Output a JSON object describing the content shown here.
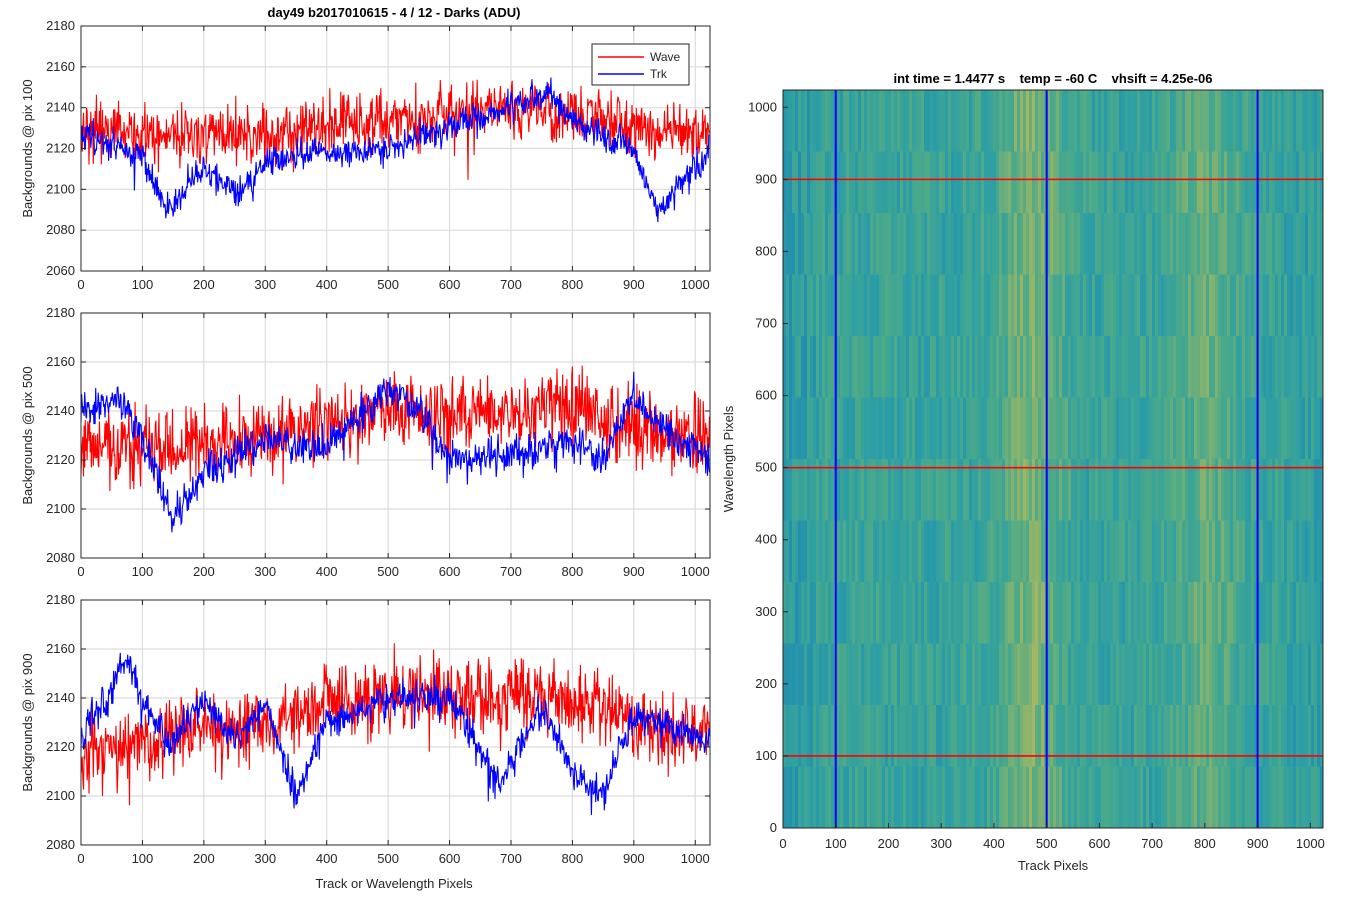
{
  "figure": {
    "title": "day49 b2017010615 - 4 / 12 - Darks (ADU)",
    "xlabel_left": "Track or Wavelength Pixels"
  },
  "chart_data": [
    {
      "type": "line",
      "ylabel": "Backgrounds @ pix 100",
      "xlim": [
        0,
        1024
      ],
      "ylim": [
        2060,
        2180
      ],
      "xticks": [
        0,
        100,
        200,
        300,
        400,
        500,
        600,
        700,
        800,
        900,
        1000
      ],
      "yticks": [
        2060,
        2080,
        2100,
        2120,
        2140,
        2160,
        2180
      ],
      "grid": true,
      "legend": "top-right",
      "series": [
        {
          "name": "Wave",
          "color": "#ff0000",
          "mean": 2128,
          "noise": 10,
          "seed": 11,
          "trend_x": [
            0,
            100,
            200,
            300,
            400,
            500,
            600,
            700,
            800,
            900,
            1024
          ],
          "trend_y": [
            2128,
            2127,
            2126,
            2125,
            2131,
            2134,
            2136,
            2140,
            2138,
            2130,
            2126
          ]
        },
        {
          "name": "Trk",
          "color": "#0000ff",
          "mean": 2118,
          "noise": 5,
          "seed": 23,
          "trend_x": [
            0,
            50,
            100,
            140,
            200,
            260,
            300,
            400,
            500,
            600,
            700,
            760,
            800,
            900,
            940,
            1024
          ],
          "trend_y": [
            2128,
            2122,
            2115,
            2090,
            2110,
            2098,
            2115,
            2118,
            2120,
            2132,
            2140,
            2148,
            2135,
            2118,
            2090,
            2120
          ]
        }
      ]
    },
    {
      "type": "line",
      "ylabel": "Backgrounds @ pix 500",
      "xlim": [
        0,
        1024
      ],
      "ylim": [
        2080,
        2180
      ],
      "xticks": [
        0,
        100,
        200,
        300,
        400,
        500,
        600,
        700,
        800,
        900,
        1000
      ],
      "yticks": [
        2080,
        2100,
        2120,
        2140,
        2160,
        2180
      ],
      "grid": true,
      "series": [
        {
          "name": "Wave",
          "color": "#ff0000",
          "mean": 2128,
          "noise": 11,
          "seed": 37,
          "trend_x": [
            0,
            100,
            200,
            300,
            400,
            500,
            600,
            700,
            800,
            900,
            1024
          ],
          "trend_y": [
            2126,
            2124,
            2126,
            2130,
            2135,
            2140,
            2138,
            2140,
            2142,
            2134,
            2128
          ]
        },
        {
          "name": "Trk",
          "color": "#0000ff",
          "mean": 2125,
          "noise": 5,
          "seed": 41,
          "trend_x": [
            0,
            60,
            100,
            150,
            200,
            300,
            400,
            500,
            550,
            600,
            700,
            800,
            850,
            900,
            1024
          ],
          "trend_y": [
            2140,
            2145,
            2130,
            2095,
            2115,
            2128,
            2125,
            2150,
            2140,
            2120,
            2122,
            2128,
            2120,
            2145,
            2120
          ]
        }
      ]
    },
    {
      "type": "line",
      "ylabel": "Backgrounds @ pix 900",
      "xlim": [
        0,
        1024
      ],
      "ylim": [
        2080,
        2180
      ],
      "xticks": [
        0,
        100,
        200,
        300,
        400,
        500,
        600,
        700,
        800,
        900,
        1000
      ],
      "yticks": [
        2080,
        2100,
        2120,
        2140,
        2160,
        2180
      ],
      "grid": true,
      "series": [
        {
          "name": "Wave",
          "color": "#ff0000",
          "mean": 2130,
          "noise": 11,
          "seed": 53,
          "trend_x": [
            0,
            100,
            200,
            300,
            400,
            500,
            600,
            700,
            800,
            900,
            1024
          ],
          "trend_y": [
            2118,
            2122,
            2128,
            2130,
            2138,
            2142,
            2140,
            2142,
            2140,
            2130,
            2124
          ]
        },
        {
          "name": "Trk",
          "color": "#0000ff",
          "mean": 2128,
          "noise": 5,
          "seed": 67,
          "trend_x": [
            0,
            40,
            70,
            100,
            150,
            200,
            250,
            300,
            350,
            400,
            500,
            600,
            680,
            750,
            800,
            850,
            900,
            1024
          ],
          "trend_y": [
            2125,
            2140,
            2155,
            2140,
            2122,
            2140,
            2122,
            2138,
            2100,
            2130,
            2140,
            2140,
            2105,
            2135,
            2110,
            2100,
            2135,
            2122
          ]
        }
      ]
    },
    {
      "type": "heatmap",
      "title": "int time = 1.4477 s    temp = -60 C    vhsift = 4.25e-06",
      "xlabel": "Track Pixels",
      "ylabel": "Wavelength Pixels",
      "xlim": [
        0,
        1024
      ],
      "ylim": [
        0,
        1024
      ],
      "xticks": [
        0,
        100,
        200,
        300,
        400,
        500,
        600,
        700,
        800,
        900,
        1000
      ],
      "yticks": [
        0,
        100,
        200,
        300,
        400,
        500,
        600,
        700,
        800,
        900,
        1000
      ],
      "colormap": [
        "#1a7fb5",
        "#2b9ea6",
        "#4aa98a",
        "#8fb46a",
        "#c6bb5a"
      ],
      "ridges_x": [
        470,
        800
      ],
      "vertical_lines": {
        "x": [
          100,
          500,
          900
        ],
        "color": "#0000ff"
      },
      "horizontal_lines": {
        "y": [
          100,
          500,
          900
        ],
        "color": "#ff0000"
      }
    }
  ]
}
